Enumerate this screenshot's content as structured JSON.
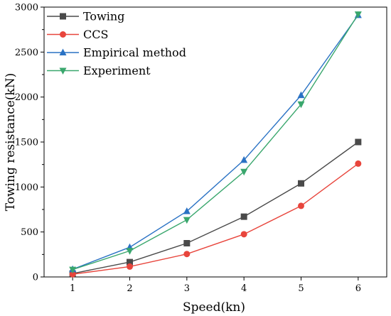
{
  "chart_data": {
    "type": "line",
    "xlabel": "Speed(kn)",
    "ylabel": "Towing resistance(kN)",
    "xlim": [
      0.5,
      6.5
    ],
    "ylim": [
      0,
      3000
    ],
    "x": [
      1,
      2,
      3,
      4,
      5,
      6
    ],
    "x_ticks": [
      "1",
      "2",
      "3",
      "4",
      "5",
      "6"
    ],
    "y_ticks": [
      "0",
      "500",
      "1000",
      "1500",
      "2000",
      "2500",
      "3000"
    ],
    "grid": false,
    "legend_position": "top-left",
    "series": [
      {
        "name": "Towing",
        "values": [
          38,
          165,
          375,
          670,
          1040,
          1500
        ],
        "color": "#4a4a4a",
        "marker": "square"
      },
      {
        "name": "CCS",
        "values": [
          30,
          115,
          255,
          475,
          790,
          1260
        ],
        "color": "#e8453c",
        "marker": "circle"
      },
      {
        "name": "Empirical method",
        "values": [
          85,
          330,
          730,
          1300,
          2020,
          2910
        ],
        "color": "#2a72c4",
        "marker": "triangle-up"
      },
      {
        "name": "Experiment",
        "values": [
          82,
          290,
          635,
          1170,
          1920,
          2920
        ],
        "color": "#3aa76d",
        "marker": "triangle-down"
      }
    ]
  }
}
